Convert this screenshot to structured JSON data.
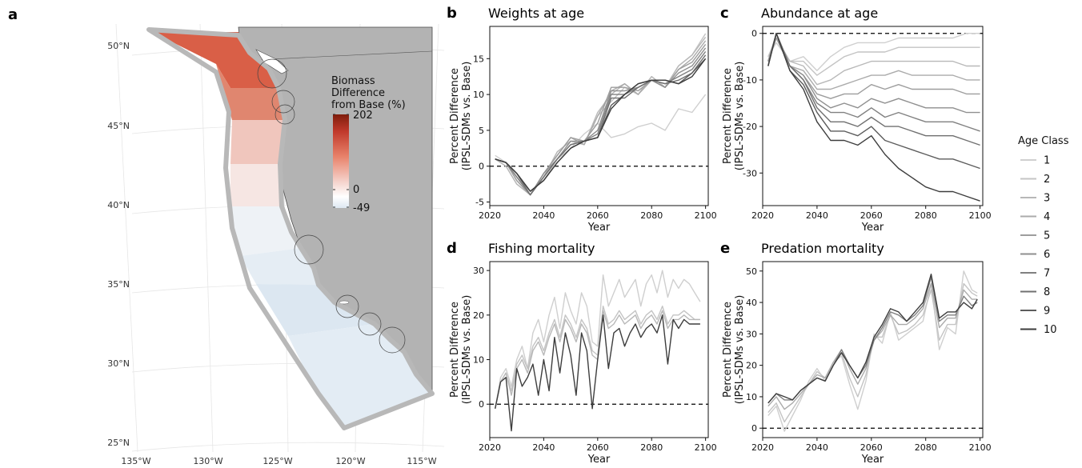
{
  "figure": {
    "legend_title": "Age Class"
  },
  "legend_items": [
    "1",
    "2",
    "3",
    "4",
    "5",
    "6",
    "7",
    "8",
    "9",
    "10"
  ],
  "series_colors": [
    "#cfcfcf",
    "#c4c4c4",
    "#b8b8b8",
    "#ababab",
    "#9d9d9d",
    "#8f8f8f",
    "#808080",
    "#707070",
    "#5c5c5c",
    "#3d3d3d"
  ],
  "map": {
    "panel_letter": "a",
    "legend_title_lines": [
      "Biomass",
      "Difference",
      "from Base (%)"
    ],
    "colorbar_labels": [
      "202",
      "0",
      "-49"
    ],
    "colorbar_colors": [
      "#7f1d0c",
      "#c0392b",
      "#e8826a",
      "#f5d3cc",
      "#ffffff",
      "#dde8f2"
    ],
    "lat_labels": [
      "50°N",
      "45°N",
      "40°N",
      "35°N",
      "30°N",
      "25°N"
    ],
    "lon_labels": [
      "135°W",
      "130°W",
      "125°W",
      "120°W",
      "115°W"
    ],
    "land_color": "#b3b3b3",
    "boundary_color": "#b8b8b8",
    "region_fills": [
      "#d95f47",
      "#e0866f",
      "#f0c6bd",
      "#f6e6e3",
      "#eef2f6",
      "#e5edf4",
      "#dce7f1",
      "#e3ecf4"
    ]
  },
  "chart_data": [
    {
      "panel": "b",
      "type": "line",
      "title": "Weights at age",
      "xlabel": "Year",
      "ylabel_lines": [
        "Percent Difference",
        "(IPSL-SDMs vs. Base)"
      ],
      "xlim": [
        2020,
        2101
      ],
      "ylim": [
        -5.5,
        19.5
      ],
      "xticks": [
        2020,
        2040,
        2060,
        2080,
        2100
      ],
      "yticks": [
        -5,
        0,
        5,
        10,
        15
      ],
      "ref_line_y": 0,
      "x": [
        2022,
        2026,
        2030,
        2035,
        2040,
        2045,
        2050,
        2055,
        2060,
        2065,
        2070,
        2075,
        2080,
        2085,
        2090,
        2095,
        2100
      ],
      "series": [
        {
          "name": "1",
          "values": [
            1.5,
            0.5,
            -1.5,
            -3.5,
            -2,
            1,
            2.5,
            4.5,
            6,
            4,
            4.5,
            5.5,
            6,
            5,
            8,
            7.5,
            10
          ]
        },
        {
          "name": "2",
          "values": [
            1,
            0,
            -2.5,
            -4,
            -1.5,
            2,
            3.5,
            3,
            7,
            9,
            11,
            10,
            12.5,
            11,
            14,
            15.5,
            18.5
          ]
        },
        {
          "name": "3",
          "values": [
            1,
            0,
            -2.5,
            -4,
            -1.5,
            2,
            3.5,
            3,
            7.5,
            10,
            11.5,
            10,
            12.5,
            11,
            14,
            15.5,
            18
          ]
        },
        {
          "name": "4",
          "values": [
            1,
            0.5,
            -2,
            -4,
            -1,
            1.5,
            4,
            3,
            7,
            10.5,
            11.5,
            10,
            12,
            11,
            13.5,
            15,
            17.5
          ]
        },
        {
          "name": "5",
          "values": [
            1,
            0.5,
            -2,
            -4,
            -1,
            1.5,
            4,
            3.5,
            6,
            11,
            11,
            10.5,
            12,
            11,
            13.5,
            14.5,
            17
          ]
        },
        {
          "name": "6",
          "values": [
            1,
            0.5,
            -1.5,
            -4,
            -1,
            1,
            3.5,
            3.5,
            5,
            10.5,
            10.5,
            11,
            12,
            11,
            13,
            14,
            16.5
          ]
        },
        {
          "name": "7",
          "values": [
            1,
            0.5,
            -1.5,
            -4,
            -1.5,
            1,
            3,
            3.5,
            4.5,
            10,
            10,
            11,
            12,
            11.5,
            12.5,
            13.5,
            16
          ]
        },
        {
          "name": "8",
          "values": [
            1,
            0.5,
            -1,
            -4,
            -1.5,
            1,
            3,
            3.5,
            4,
            9.5,
            9.5,
            11,
            12,
            11.5,
            12,
            13,
            15.5
          ]
        },
        {
          "name": "9",
          "values": [
            1,
            0.5,
            -1,
            -3.5,
            -2,
            0.5,
            2.5,
            3.5,
            4,
            8.5,
            10,
            11.5,
            12,
            12,
            11.5,
            13,
            15
          ]
        },
        {
          "name": "10",
          "values": [
            1,
            0.5,
            -1,
            -3.5,
            -2,
            0.5,
            2.5,
            3.5,
            4,
            8,
            10,
            11.5,
            12,
            12,
            11.5,
            12.5,
            15
          ]
        }
      ]
    },
    {
      "panel": "c",
      "type": "line",
      "title": "Abundance at age",
      "xlabel": "Year",
      "ylabel_lines": [
        "Percent Difference",
        "(IPSL-SDMs vs. Base)"
      ],
      "xlim": [
        2020,
        2101
      ],
      "ylim": [
        -37,
        1.5
      ],
      "xticks": [
        2020,
        2040,
        2060,
        2080,
        2100
      ],
      "yticks": [
        -30,
        -20,
        -10,
        0
      ],
      "ref_line_y": 0,
      "x": [
        2022,
        2025,
        2030,
        2035,
        2040,
        2045,
        2050,
        2055,
        2060,
        2065,
        2070,
        2075,
        2080,
        2085,
        2090,
        2095,
        2100
      ],
      "series": [
        {
          "name": "1",
          "values": [
            -5,
            -2,
            -6,
            -5,
            -8,
            -5,
            -3,
            -2,
            -2,
            -2,
            -1,
            -1,
            -1,
            -1,
            -1,
            0,
            0
          ]
        },
        {
          "name": "2",
          "values": [
            -5,
            -1,
            -6,
            -6,
            -9,
            -7,
            -5,
            -4,
            -4,
            -4,
            -3,
            -3,
            -3,
            -3,
            -3,
            -3,
            -3
          ]
        },
        {
          "name": "3",
          "values": [
            -6,
            -1,
            -6,
            -7,
            -11,
            -10,
            -8,
            -7,
            -6,
            -6,
            -6,
            -6,
            -6,
            -6,
            -6,
            -7,
            -7
          ]
        },
        {
          "name": "4",
          "values": [
            -6,
            -1,
            -7,
            -8,
            -12,
            -12,
            -11,
            -10,
            -9,
            -9,
            -8,
            -9,
            -9,
            -9,
            -9,
            -10,
            -10
          ]
        },
        {
          "name": "5",
          "values": [
            -6,
            -1,
            -7,
            -9,
            -13,
            -14,
            -13,
            -13,
            -11,
            -12,
            -11,
            -12,
            -12,
            -12,
            -12,
            -13,
            -13
          ]
        },
        {
          "name": "6",
          "values": [
            -6,
            0,
            -7,
            -9,
            -14,
            -16,
            -15,
            -16,
            -14,
            -15,
            -14,
            -15,
            -16,
            -16,
            -16,
            -17,
            -17
          ]
        },
        {
          "name": "7",
          "values": [
            -7,
            0,
            -7,
            -10,
            -15,
            -17,
            -17,
            -18,
            -16,
            -18,
            -17,
            -18,
            -19,
            -19,
            -19,
            -20,
            -21
          ]
        },
        {
          "name": "8",
          "values": [
            -7,
            0,
            -7,
            -10,
            -16,
            -19,
            -19,
            -20,
            -18,
            -20,
            -20,
            -21,
            -22,
            -22,
            -22,
            -23,
            -24
          ]
        },
        {
          "name": "9",
          "values": [
            -7,
            0,
            -8,
            -11,
            -17,
            -21,
            -21,
            -22,
            -20,
            -23,
            -24,
            -25,
            -26,
            -27,
            -27,
            -28,
            -29
          ]
        },
        {
          "name": "10",
          "values": [
            -7,
            0,
            -8,
            -12,
            -19,
            -23,
            -23,
            -24,
            -22,
            -26,
            -29,
            -31,
            -33,
            -34,
            -34,
            -35,
            -36
          ]
        }
      ]
    },
    {
      "panel": "d",
      "type": "line",
      "title": "Fishing mortality",
      "xlabel": "Year",
      "ylabel_lines": [
        "Percent Difference",
        "(IPSL-SDMs vs. Base)"
      ],
      "xlim": [
        2020,
        2101
      ],
      "ylim": [
        -7.5,
        32
      ],
      "xticks": [
        2020,
        2040,
        2060,
        2080,
        2100
      ],
      "yticks": [
        0,
        10,
        20,
        30
      ],
      "ref_line_y": 0,
      "x": [
        2022,
        2024,
        2026,
        2028,
        2030,
        2032,
        2034,
        2036,
        2038,
        2040,
        2042,
        2044,
        2046,
        2048,
        2050,
        2052,
        2054,
        2056,
        2058,
        2060,
        2062,
        2064,
        2066,
        2068,
        2070,
        2072,
        2074,
        2076,
        2078,
        2080,
        2082,
        2084,
        2086,
        2088,
        2090,
        2092,
        2094,
        2096,
        2098
      ],
      "series": [
        {
          "name": "1",
          "values": [
            -1,
            6,
            8,
            4,
            10,
            13,
            8,
            16,
            19,
            14,
            20,
            24,
            17,
            25,
            21,
            18,
            25,
            22,
            14,
            13,
            29,
            22,
            25,
            28,
            24,
            26,
            28,
            22,
            27,
            29,
            25,
            30,
            24,
            28,
            26,
            28,
            27,
            25,
            23
          ]
        },
        {
          "name": "2",
          "values": [
            -1,
            5,
            7,
            3,
            9,
            11,
            8,
            13,
            15,
            12,
            16,
            19,
            15,
            20,
            18,
            15,
            19,
            17,
            12,
            11,
            22,
            18,
            19,
            21,
            19,
            20,
            21,
            18,
            20,
            21,
            19,
            22,
            18,
            20,
            20,
            21,
            20,
            19,
            19
          ]
        },
        {
          "name": "3",
          "values": [
            -1,
            5,
            7,
            2,
            8,
            10,
            7,
            12,
            14,
            11,
            15,
            18,
            14,
            19,
            17,
            14,
            18,
            16,
            11,
            10,
            21,
            17,
            18,
            20,
            18,
            19,
            20,
            17,
            19,
            20,
            18,
            21,
            17,
            19,
            19,
            20,
            19,
            19,
            19
          ]
        },
        {
          "name": "10",
          "values": [
            -1,
            5,
            6,
            -6,
            8,
            4,
            6,
            9,
            2,
            10,
            3,
            15,
            7,
            16,
            11,
            2,
            16,
            12,
            -1,
            10,
            20,
            8,
            16,
            17,
            13,
            16,
            18,
            15,
            17,
            18,
            16,
            20,
            9,
            19,
            17,
            19,
            18,
            18,
            18
          ]
        }
      ]
    },
    {
      "panel": "e",
      "type": "line",
      "title": "Predation mortality",
      "xlabel": "Year",
      "ylabel_lines": [
        "Percent Difference",
        "(IPSL-SDMs vs. Base)"
      ],
      "xlim": [
        2020,
        2101
      ],
      "ylim": [
        -3,
        53
      ],
      "xticks": [
        2020,
        2040,
        2060,
        2080,
        2100
      ],
      "yticks": [
        0,
        10,
        20,
        30,
        40,
        50
      ],
      "ref_line_y": 0,
      "x": [
        2022,
        2025,
        2028,
        2031,
        2034,
        2037,
        2040,
        2043,
        2046,
        2049,
        2052,
        2055,
        2058,
        2061,
        2064,
        2067,
        2070,
        2073,
        2076,
        2079,
        2082,
        2085,
        2088,
        2091,
        2094,
        2097,
        2099
      ],
      "series": [
        {
          "name": "1",
          "values": [
            4,
            7,
            -1,
            4,
            9,
            15,
            19,
            15,
            21,
            23,
            14,
            6,
            15,
            30,
            27,
            37,
            28,
            30,
            32,
            34,
            46,
            25,
            32,
            30,
            50,
            44,
            43
          ]
        },
        {
          "name": "2",
          "values": [
            5,
            8,
            2,
            6,
            10,
            14,
            18,
            16,
            21,
            24,
            16,
            10,
            17,
            29,
            29,
            36,
            30,
            31,
            33,
            36,
            44,
            28,
            33,
            33,
            46,
            43,
            42
          ]
        },
        {
          "name": "4",
          "values": [
            7,
            10,
            6,
            8,
            11,
            14,
            17,
            16,
            21,
            25,
            19,
            14,
            19,
            28,
            31,
            36,
            33,
            33,
            35,
            38,
            46,
            32,
            35,
            35,
            44,
            41,
            41
          ]
        },
        {
          "name": "7",
          "values": [
            8,
            11,
            9,
            9,
            12,
            14,
            16,
            15,
            20,
            25,
            20,
            16,
            20,
            28,
            32,
            37,
            36,
            34,
            36,
            39,
            48,
            34,
            36,
            36,
            42,
            39,
            40
          ]
        },
        {
          "name": "10",
          "values": [
            8,
            11,
            10,
            9,
            12,
            14,
            16,
            15,
            20,
            24,
            20,
            16,
            21,
            29,
            33,
            38,
            37,
            34,
            37,
            40,
            49,
            35,
            37,
            37,
            40,
            38,
            41
          ]
        }
      ]
    }
  ]
}
